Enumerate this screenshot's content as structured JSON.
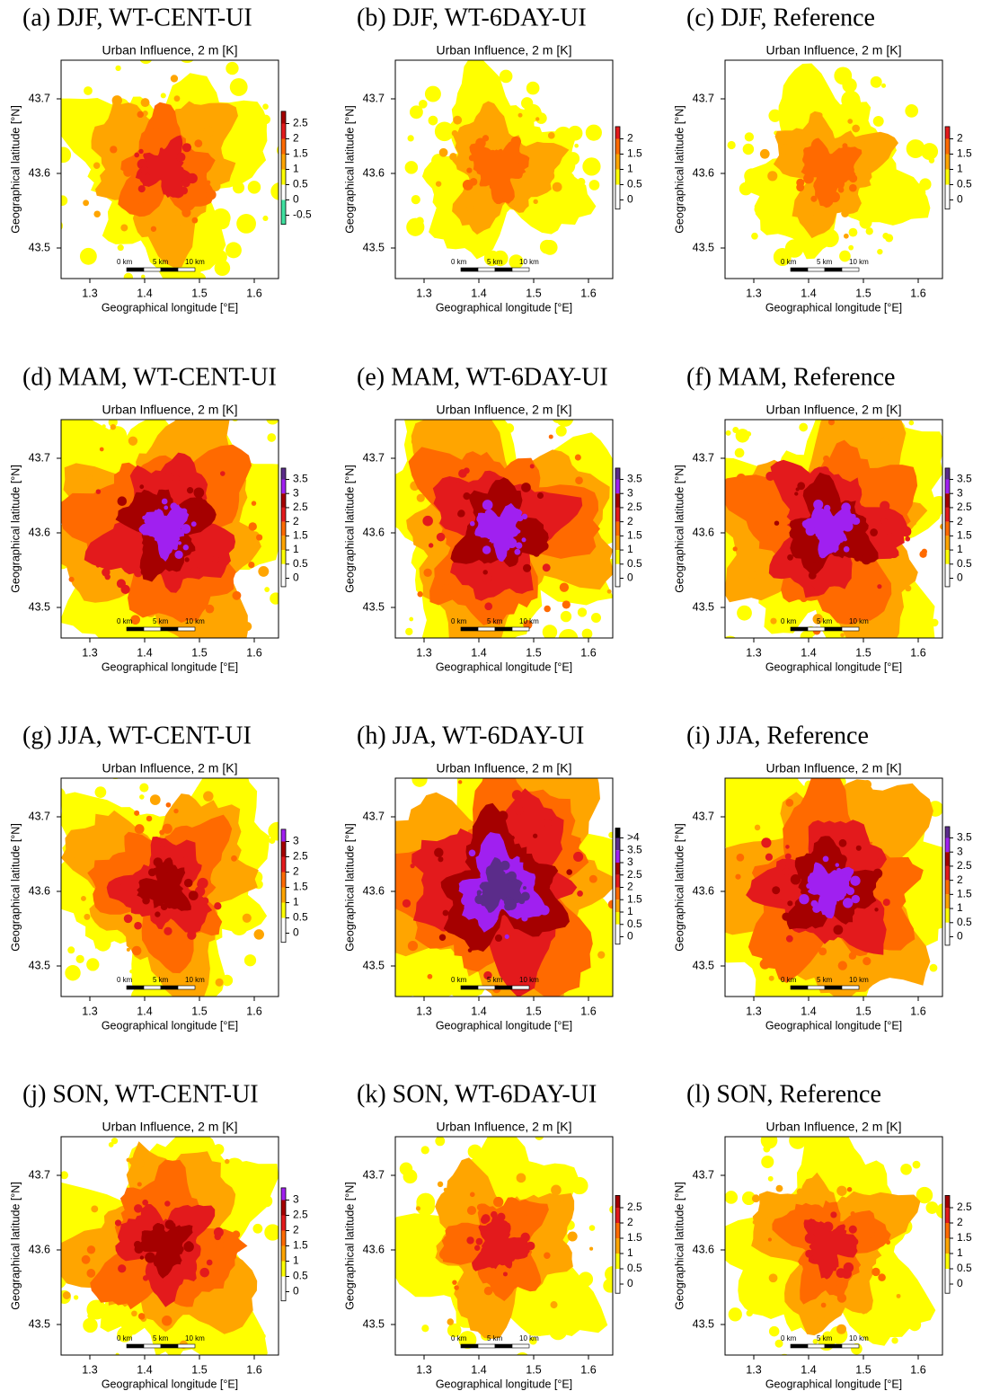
{
  "panels": [
    {
      "label": "(a) DJF, WT-CENT-UI",
      "title": "Urban Influence, 2 m [K]",
      "x_label": "Geographical longitude [°E]",
      "y_label": "Geographical latitude [°N]",
      "x_ticks": [
        "1.3",
        "1.4",
        "1.5",
        "1.6"
      ],
      "y_ticks": [
        "43.7",
        "43.6",
        "43.5"
      ],
      "colorbar_ticks": [
        "2.5",
        "2",
        "1.5",
        "1",
        "0.5",
        "0",
        "-0.5"
      ],
      "scale_bar": [
        "0 km",
        "5 km",
        "10 km"
      ]
    },
    {
      "label": "(b) DJF, WT-6DAY-UI",
      "title": "Urban Influence, 2 m [K]",
      "x_label": "Geographical longitude [°E]",
      "y_label": "Geographical latitude [°N]",
      "x_ticks": [
        "1.3",
        "1.4",
        "1.5",
        "1.6"
      ],
      "y_ticks": [
        "43.7",
        "43.6",
        "43.5"
      ],
      "colorbar_ticks": [
        "2",
        "1.5",
        "1",
        "0.5",
        "0"
      ],
      "scale_bar": [
        "0 km",
        "5 km",
        "10 km"
      ]
    },
    {
      "label": "(c) DJF, Reference",
      "title": "Urban Influence, 2 m [K]",
      "x_label": "Geographical longitude [°E]",
      "y_label": "Geographical latitude [°N]",
      "x_ticks": [
        "1.3",
        "1.4",
        "1.5",
        "1.6"
      ],
      "y_ticks": [
        "43.7",
        "43.6",
        "43.5"
      ],
      "colorbar_ticks": [
        "2",
        "1.5",
        "1",
        "0.5",
        "0"
      ],
      "scale_bar": [
        "0 km",
        "5 km",
        "10 km"
      ]
    },
    {
      "label": "(d) MAM, WT-CENT-UI",
      "title": "Urban Influence, 2 m [K]",
      "x_label": "Geographical longitude [°E]",
      "y_label": "Geographical latitude [°N]",
      "x_ticks": [
        "1.3",
        "1.4",
        "1.5",
        "1.6"
      ],
      "y_ticks": [
        "43.7",
        "43.6",
        "43.5"
      ],
      "colorbar_ticks": [
        "3.5",
        "3",
        "2.5",
        "2",
        "1.5",
        "1",
        "0.5",
        "0"
      ],
      "scale_bar": [
        "0 km",
        "5 km",
        "10 km"
      ]
    },
    {
      "label": "(e) MAM, WT-6DAY-UI",
      "title": "Urban Influence, 2 m [K]",
      "x_label": "Geographical longitude [°E]",
      "y_label": "Geographical latitude [°N]",
      "x_ticks": [
        "1.3",
        "1.4",
        "1.5",
        "1.6"
      ],
      "y_ticks": [
        "43.7",
        "43.6",
        "43.5"
      ],
      "colorbar_ticks": [
        "3.5",
        "3",
        "2.5",
        "2",
        "1.5",
        "1",
        "0.5",
        "0"
      ],
      "scale_bar": [
        "0 km",
        "5 km",
        "10 km"
      ]
    },
    {
      "label": "(f) MAM, Reference",
      "title": "Urban Influence, 2 m [K]",
      "x_label": "Geographical longitude [°E]",
      "y_label": "Geographical latitude [°N]",
      "x_ticks": [
        "1.3",
        "1.4",
        "1.5",
        "1.6"
      ],
      "y_ticks": [
        "43.7",
        "43.6",
        "43.5"
      ],
      "colorbar_ticks": [
        "3.5",
        "3",
        "2.5",
        "2",
        "1.5",
        "1",
        "0.5",
        "0"
      ],
      "scale_bar": [
        "0 km",
        "5 km",
        "10 km"
      ]
    },
    {
      "label": "(g) JJA, WT-CENT-UI",
      "title": "Urban Influence, 2 m [K]",
      "x_label": "Geographical longitude [°E]",
      "y_label": "Geographical latitude [°N]",
      "x_ticks": [
        "1.3",
        "1.4",
        "1.5",
        "1.6"
      ],
      "y_ticks": [
        "43.7",
        "43.6",
        "43.5"
      ],
      "colorbar_ticks": [
        "3",
        "2.5",
        "2",
        "1.5",
        "1",
        "0.5",
        "0"
      ],
      "scale_bar": [
        "0 km",
        "5 km",
        "10 km"
      ]
    },
    {
      "label": "(h) JJA, WT-6DAY-UI",
      "title": "Urban Influence, 2 m [K]",
      "x_label": "Geographical longitude [°E]",
      "y_label": "Geographical latitude [°N]",
      "x_ticks": [
        "1.3",
        "1.4",
        "1.5",
        "1.6"
      ],
      "y_ticks": [
        "43.7",
        "43.6",
        "43.5"
      ],
      "colorbar_ticks": [
        ">4",
        "3.5",
        "3",
        "2.5",
        "2",
        "1.5",
        "1",
        "0.5",
        "0"
      ],
      "scale_bar": [
        "0 km",
        "5 km",
        "10 km"
      ]
    },
    {
      "label": "(i) JJA, Reference",
      "title": "Urban Influence, 2 m [K]",
      "x_label": "Geographical longitude [°E]",
      "y_label": "Geographical latitude [°N]",
      "x_ticks": [
        "1.3",
        "1.4",
        "1.5",
        "1.6"
      ],
      "y_ticks": [
        "43.7",
        "43.6",
        "43.5"
      ],
      "colorbar_ticks": [
        "3.5",
        "3",
        "2.5",
        "2",
        "1.5",
        "1",
        "0.5",
        "0"
      ],
      "scale_bar": [
        "0 km",
        "5 km",
        "10 km"
      ]
    },
    {
      "label": "(j) SON, WT-CENT-UI",
      "title": "Urban Influence, 2 m [K]",
      "x_label": "Geographical longitude [°E]",
      "y_label": "Geographical latitude [°N]",
      "x_ticks": [
        "1.3",
        "1.4",
        "1.5",
        "1.6"
      ],
      "y_ticks": [
        "43.7",
        "43.6",
        "43.5"
      ],
      "colorbar_ticks": [
        "3",
        "2.5",
        "2",
        "1.5",
        "1",
        "0.5",
        "0"
      ],
      "scale_bar": [
        "0 km",
        "5 km",
        "10 km"
      ]
    },
    {
      "label": "(k) SON, WT-6DAY-UI",
      "title": "Urban Influence, 2 m [K]",
      "x_label": "Geographical longitude [°E]",
      "y_label": "Geographical latitude [°N]",
      "x_ticks": [
        "1.3",
        "1.4",
        "1.5",
        "1.6"
      ],
      "y_ticks": [
        "43.7",
        "43.6",
        "43.5"
      ],
      "colorbar_ticks": [
        "2.5",
        "2",
        "1.5",
        "1",
        "0.5",
        "0"
      ],
      "scale_bar": [
        "0 km",
        "5 km",
        "10 km"
      ]
    },
    {
      "label": "(l) SON, Reference",
      "title": "Urban Influence, 2 m [K]",
      "x_label": "Geographical longitude [°E]",
      "y_label": "Geographical latitude [°N]",
      "x_ticks": [
        "1.3",
        "1.4",
        "1.5",
        "1.6"
      ],
      "y_ticks": [
        "43.7",
        "43.6",
        "43.5"
      ],
      "colorbar_ticks": [
        "2.5",
        "2",
        "1.5",
        "1",
        "0.5",
        "0"
      ],
      "scale_bar": [
        "0 km",
        "5 km",
        "10 km"
      ]
    }
  ]
}
